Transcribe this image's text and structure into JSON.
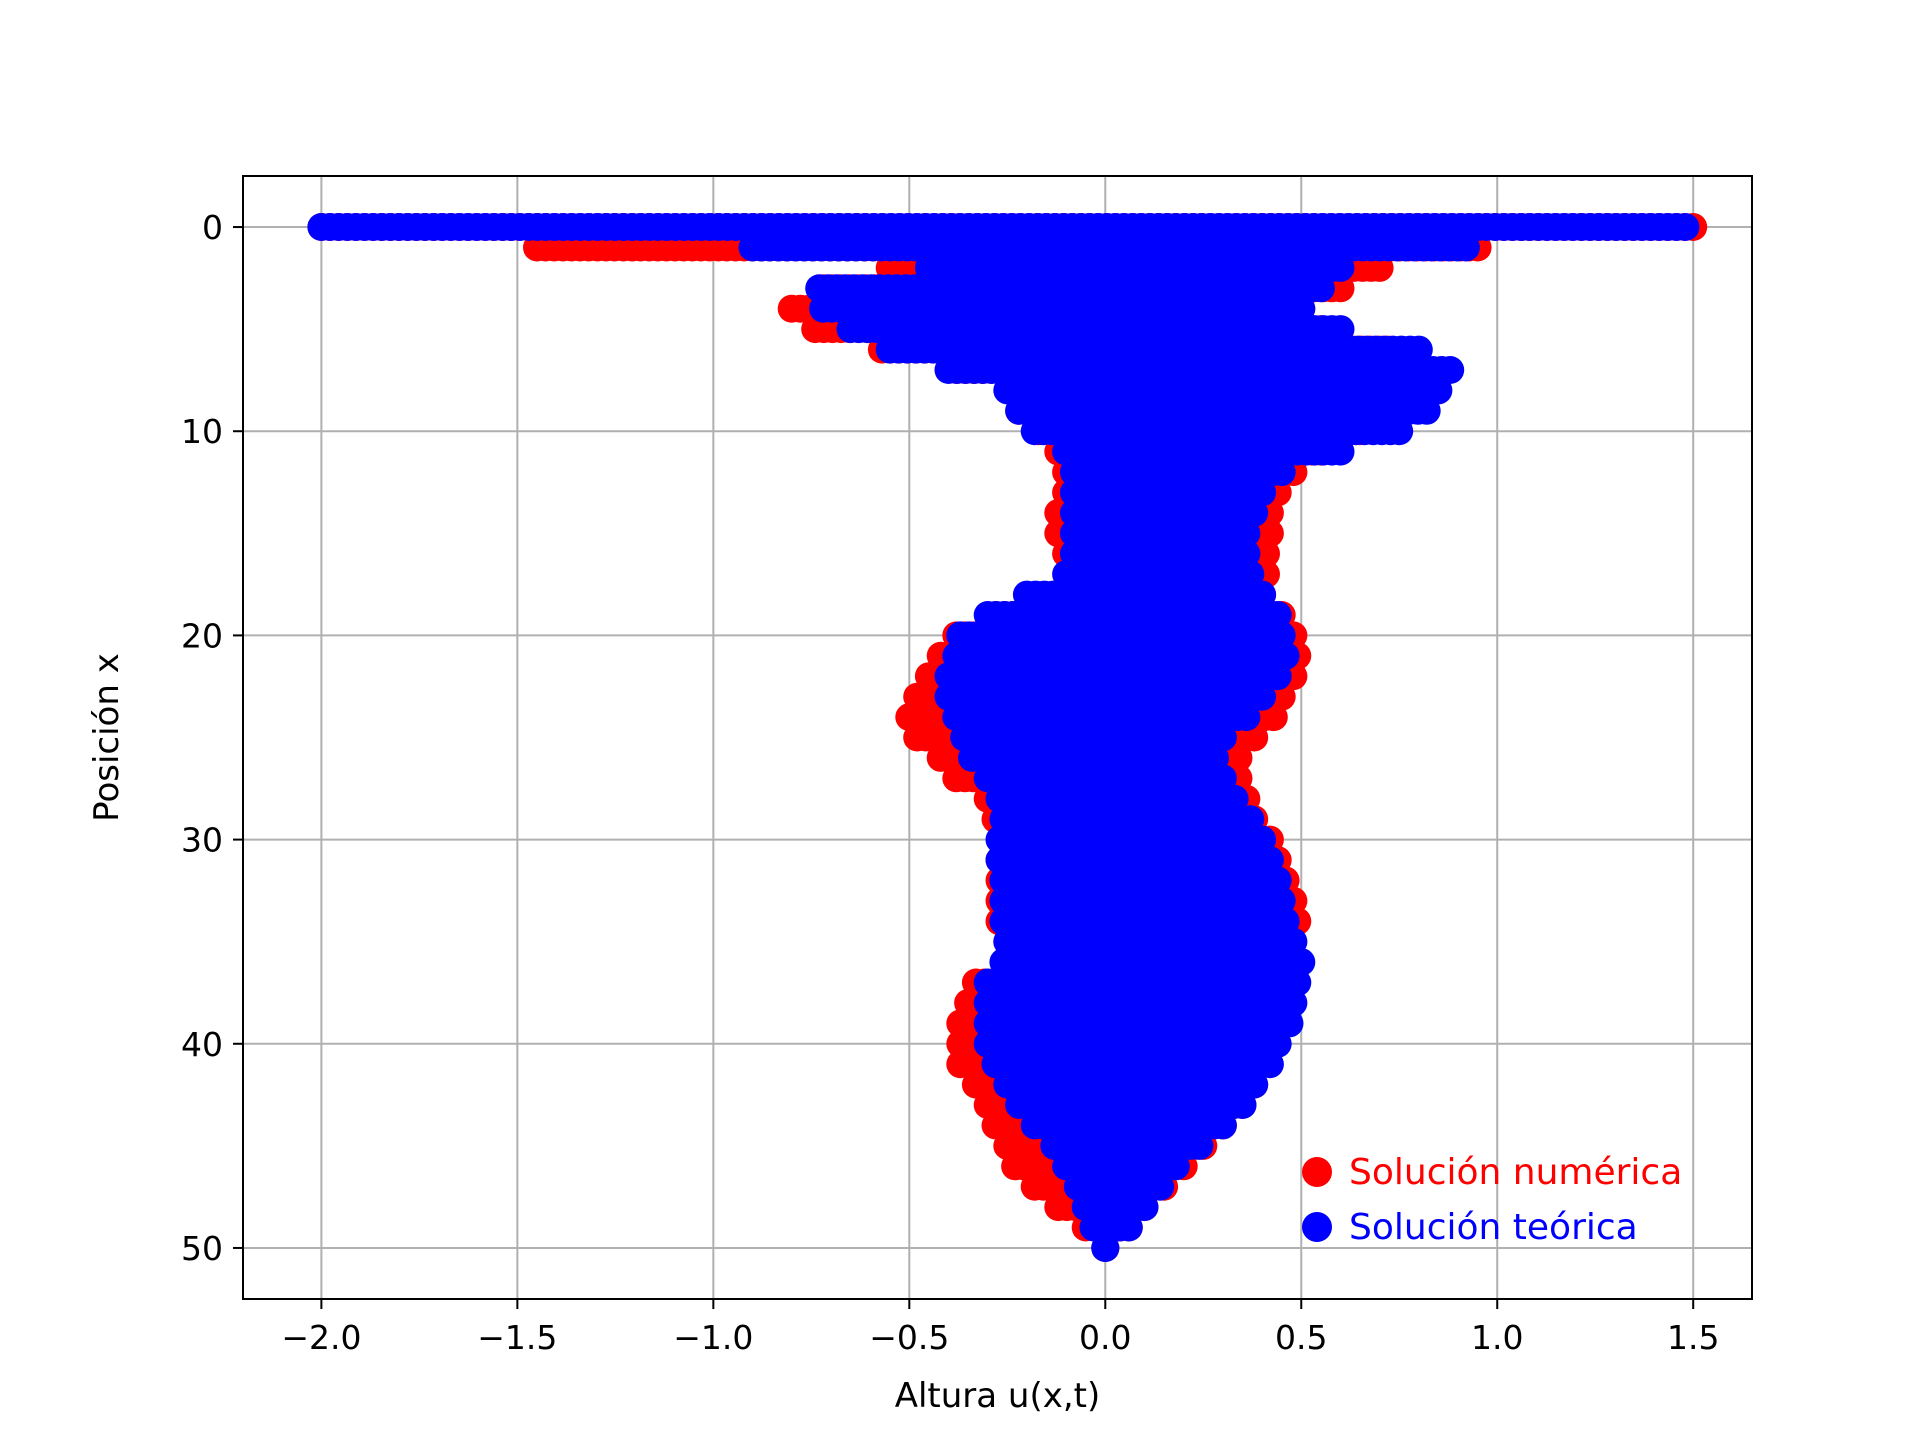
{
  "chart_data": {
    "type": "scatter",
    "title": "",
    "xlabel": "Altura u(x,t)",
    "ylabel": "Posición x",
    "xlim": [
      -2.2,
      1.65
    ],
    "ylim": [
      52.5,
      -2.5
    ],
    "y_inverted": true,
    "grid": true,
    "x_ticks": [
      -2.0,
      -1.5,
      -1.0,
      -0.5,
      0.0,
      0.5,
      1.0,
      1.5
    ],
    "x_tick_labels": [
      "−2.0",
      "−1.5",
      "−1.0",
      "−0.5",
      "0.0",
      "0.5",
      "1.0",
      "1.5"
    ],
    "y_ticks": [
      0,
      10,
      20,
      30,
      40,
      50
    ],
    "y_tick_labels": [
      "0",
      "10",
      "20",
      "30",
      "40",
      "50"
    ],
    "legend": {
      "placement": "lower-right"
    },
    "series": [
      {
        "name": "Solución numérica",
        "color": "#ff0000",
        "x_position": [
          0,
          1,
          2,
          3,
          4,
          5,
          6,
          7,
          8,
          9,
          10,
          11,
          12,
          13,
          14,
          15,
          16,
          17,
          18,
          19,
          20,
          21,
          22,
          23,
          24,
          25,
          26,
          27,
          28,
          29,
          30,
          31,
          32,
          33,
          34,
          35,
          36,
          37,
          38,
          39,
          40,
          41,
          42,
          43,
          44,
          45,
          46,
          47,
          48,
          49,
          50
        ],
        "min_height": [
          -2.0,
          -1.45,
          -0.55,
          -0.72,
          -0.8,
          -0.74,
          -0.57,
          -0.38,
          -0.24,
          -0.22,
          -0.17,
          -0.12,
          -0.1,
          -0.1,
          -0.12,
          -0.12,
          -0.1,
          -0.08,
          -0.12,
          -0.28,
          -0.38,
          -0.42,
          -0.45,
          -0.48,
          -0.5,
          -0.48,
          -0.42,
          -0.38,
          -0.3,
          -0.28,
          -0.25,
          -0.27,
          -0.27,
          -0.27,
          -0.27,
          -0.25,
          -0.2,
          -0.33,
          -0.35,
          -0.37,
          -0.37,
          -0.37,
          -0.33,
          -0.3,
          -0.28,
          -0.25,
          -0.23,
          -0.18,
          -0.12,
          -0.05,
          0.0
        ],
        "max_height": [
          1.5,
          0.95,
          0.7,
          0.6,
          0.5,
          0.55,
          0.72,
          0.75,
          0.78,
          0.75,
          0.65,
          0.55,
          0.48,
          0.44,
          0.42,
          0.42,
          0.41,
          0.41,
          0.4,
          0.45,
          0.48,
          0.49,
          0.48,
          0.45,
          0.43,
          0.38,
          0.34,
          0.34,
          0.36,
          0.38,
          0.42,
          0.44,
          0.46,
          0.48,
          0.49,
          0.47,
          0.48,
          0.48,
          0.47,
          0.45,
          0.42,
          0.4,
          0.38,
          0.35,
          0.3,
          0.25,
          0.2,
          0.15,
          0.1,
          0.06,
          0.0
        ]
      },
      {
        "name": "Solución teórica",
        "color": "#0000ff",
        "x_position": [
          0,
          1,
          2,
          3,
          4,
          5,
          6,
          7,
          8,
          9,
          10,
          11,
          12,
          13,
          14,
          15,
          16,
          17,
          18,
          19,
          20,
          21,
          22,
          23,
          24,
          25,
          26,
          27,
          28,
          29,
          30,
          31,
          32,
          33,
          34,
          35,
          36,
          37,
          38,
          39,
          40,
          41,
          42,
          43,
          44,
          45,
          46,
          47,
          48,
          49,
          50
        ],
        "min_height": [
          -2.0,
          -0.9,
          -0.45,
          -0.73,
          -0.72,
          -0.65,
          -0.55,
          -0.4,
          -0.25,
          -0.22,
          -0.18,
          -0.1,
          -0.08,
          -0.08,
          -0.08,
          -0.08,
          -0.08,
          -0.1,
          -0.2,
          -0.3,
          -0.37,
          -0.38,
          -0.4,
          -0.4,
          -0.38,
          -0.36,
          -0.34,
          -0.3,
          -0.27,
          -0.26,
          -0.27,
          -0.27,
          -0.26,
          -0.26,
          -0.26,
          -0.25,
          -0.26,
          -0.3,
          -0.3,
          -0.3,
          -0.3,
          -0.28,
          -0.25,
          -0.22,
          -0.18,
          -0.13,
          -0.1,
          -0.07,
          -0.05,
          -0.03,
          0.0
        ],
        "max_height": [
          1.48,
          0.92,
          0.6,
          0.55,
          0.5,
          0.6,
          0.8,
          0.88,
          0.85,
          0.82,
          0.75,
          0.6,
          0.45,
          0.4,
          0.38,
          0.36,
          0.36,
          0.37,
          0.4,
          0.44,
          0.45,
          0.46,
          0.44,
          0.4,
          0.36,
          0.3,
          0.28,
          0.3,
          0.33,
          0.37,
          0.4,
          0.42,
          0.44,
          0.45,
          0.46,
          0.48,
          0.5,
          0.49,
          0.48,
          0.47,
          0.44,
          0.42,
          0.38,
          0.35,
          0.3,
          0.24,
          0.18,
          0.14,
          0.1,
          0.06,
          0.0
        ]
      }
    ]
  }
}
